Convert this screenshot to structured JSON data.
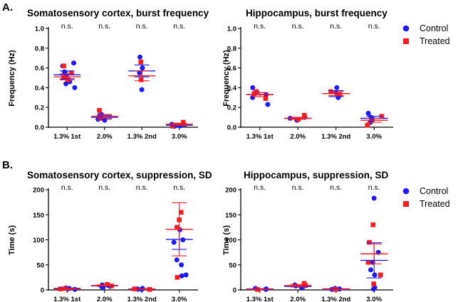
{
  "panels": {
    "a": "A.",
    "b": "B."
  },
  "legend": [
    {
      "label": "Control",
      "color": "#1a1aff",
      "marker": "circle"
    },
    {
      "label": "Treated",
      "color": "#ff1a1a",
      "marker": "square"
    }
  ],
  "chart_data": [
    {
      "type": "scatter",
      "title": "Somatosensory cortex, burst frequency",
      "ylabel": "Frequency (Hz)",
      "xlabel": "",
      "categories": [
        "1.3% 1st",
        "2.0%",
        "1.3% 2nd",
        "3.0%"
      ],
      "ylim": [
        0,
        1.0
      ],
      "yticks": [
        "0.0",
        "0.2",
        "0.4",
        "0.6",
        "0.8",
        "1.0"
      ],
      "annotations": [
        "n.s.",
        "n.s.",
        "n.s.",
        "n.s."
      ],
      "series": [
        {
          "name": "Control",
          "points": [
            [
              0,
              0.65
            ],
            [
              0,
              0.56
            ],
            [
              0,
              0.52
            ],
            [
              0,
              0.46
            ],
            [
              0,
              0.44
            ],
            [
              0,
              0.4
            ],
            [
              0,
              0.62
            ],
            [
              1,
              0.13
            ],
            [
              1,
              0.1
            ],
            [
              1,
              0.08
            ],
            [
              1,
              0.07
            ],
            [
              1,
              0.12
            ],
            [
              2,
              0.71
            ],
            [
              2,
              0.6
            ],
            [
              2,
              0.38
            ],
            [
              2,
              0.55
            ],
            [
              3,
              0.03
            ],
            [
              3,
              0.02
            ],
            [
              3,
              0.01
            ],
            [
              3,
              0.015
            ]
          ],
          "mean": [
            0.53,
            0.1,
            0.57,
            0.02
          ],
          "error": [
            0.04,
            0.02,
            0.06,
            0.01
          ]
        },
        {
          "name": "Treated",
          "points": [
            [
              0,
              0.62
            ],
            [
              0,
              0.55
            ],
            [
              0,
              0.5
            ],
            [
              0,
              0.48
            ],
            [
              1,
              0.17
            ],
            [
              1,
              0.09
            ],
            [
              1,
              0.1
            ],
            [
              2,
              0.66
            ],
            [
              2,
              0.48
            ],
            [
              3,
              0.05
            ],
            [
              3,
              0.01
            ]
          ],
          "mean": [
            0.51,
            0.11,
            0.52,
            0.03
          ],
          "error": [
            0.03,
            0.02,
            0.05,
            0.01
          ]
        }
      ]
    },
    {
      "type": "scatter",
      "title": "Hippocampus, burst frequency",
      "ylabel": "Frequency (Hz)",
      "xlabel": "",
      "categories": [
        "1.3% 1st",
        "2.0%",
        "1.3% 2nd",
        "3.0%"
      ],
      "ylim": [
        0,
        1.0
      ],
      "yticks": [
        "0.0",
        "0.2",
        "0.4",
        "0.6",
        "0.8",
        "1.0"
      ],
      "annotations": [
        "n.s.",
        "n.s.",
        "n.s.",
        "n.s."
      ],
      "series": [
        {
          "name": "Control",
          "points": [
            [
              0,
              0.4
            ],
            [
              0,
              0.33
            ],
            [
              0,
              0.3
            ],
            [
              0,
              0.23
            ],
            [
              0,
              0.36
            ],
            [
              1,
              0.09
            ],
            [
              1,
              0.07
            ],
            [
              1,
              0.1
            ],
            [
              1,
              0.08
            ],
            [
              2,
              0.4
            ],
            [
              2,
              0.35
            ],
            [
              2,
              0.3
            ],
            [
              2,
              0.32
            ],
            [
              3,
              0.14
            ],
            [
              3,
              0.1
            ],
            [
              3,
              0.07
            ],
            [
              3,
              0.05
            ]
          ],
          "mean": [
            0.33,
            0.09,
            0.34,
            0.09
          ],
          "error": [
            0.02,
            0.01,
            0.03,
            0.02
          ]
        },
        {
          "name": "Treated",
          "points": [
            [
              0,
              0.36
            ],
            [
              0,
              0.34
            ],
            [
              0,
              0.29
            ],
            [
              1,
              0.12
            ],
            [
              1,
              0.08
            ],
            [
              2,
              0.36
            ],
            [
              2,
              0.33
            ],
            [
              3,
              0.11
            ],
            [
              3,
              0.02
            ]
          ],
          "mean": [
            0.33,
            0.09,
            0.34,
            0.07
          ],
          "error": [
            0.02,
            0.01,
            0.02,
            0.02
          ]
        }
      ]
    },
    {
      "type": "scatter",
      "title": "Somatosensory cortex, suppression, SD",
      "ylabel": "Time (s)",
      "xlabel": "",
      "categories": [
        "1.3% 1st",
        "2.0%",
        "1.3% 2nd",
        "3.0%"
      ],
      "ylim": [
        0,
        200
      ],
      "yticks": [
        "0",
        "50",
        "100",
        "150",
        "200"
      ],
      "annotations": [
        "n.s.",
        "n.s.",
        "n.s.",
        "n.s."
      ],
      "series": [
        {
          "name": "Control",
          "points": [
            [
              0,
              3
            ],
            [
              0,
              2
            ],
            [
              0,
              4
            ],
            [
              0,
              1
            ],
            [
              1,
              9
            ],
            [
              1,
              7
            ],
            [
              1,
              5
            ],
            [
              1,
              10
            ],
            [
              1,
              6
            ],
            [
              2,
              2
            ],
            [
              2,
              1
            ],
            [
              2,
              3
            ],
            [
              2,
              1.5
            ],
            [
              3,
              120
            ],
            [
              3,
              100
            ],
            [
              3,
              95
            ],
            [
              3,
              60
            ],
            [
              3,
              50
            ],
            [
              3,
              30
            ],
            [
              3,
              28
            ]
          ],
          "mean": [
            3,
            8,
            2,
            101
          ],
          "error": [
            1,
            1,
            0.5,
            20
          ]
        },
        {
          "name": "Treated",
          "points": [
            [
              0,
              2
            ],
            [
              0,
              3
            ],
            [
              1,
              11
            ],
            [
              1,
              8
            ],
            [
              2,
              1
            ],
            [
              2,
              2
            ],
            [
              3,
              155
            ],
            [
              3,
              140
            ],
            [
              3,
              125
            ],
            [
              3,
              25
            ]
          ],
          "mean": [
            2,
            9,
            1.5,
            121
          ],
          "error": [
            1,
            1,
            0.5,
            53
          ]
        }
      ]
    },
    {
      "type": "scatter",
      "title": "Hippocampus, suppression, SD",
      "ylabel": "Time (s)",
      "xlabel": "",
      "categories": [
        "1.3% 1st",
        "2.0%",
        "1.3% 2nd",
        "3.0%"
      ],
      "ylim": [
        0,
        200
      ],
      "yticks": [
        "0",
        "50",
        "100",
        "150",
        "200"
      ],
      "annotations": [
        "n.s.",
        "n.s.",
        "n.s.",
        "n.s."
      ],
      "series": [
        {
          "name": "Control",
          "points": [
            [
              0,
              2
            ],
            [
              0,
              1
            ],
            [
              0,
              3
            ],
            [
              1,
              8
            ],
            [
              1,
              6
            ],
            [
              1,
              5
            ],
            [
              1,
              10
            ],
            [
              2,
              2
            ],
            [
              2,
              1
            ],
            [
              2,
              3
            ],
            [
              3,
              183
            ],
            [
              3,
              75
            ],
            [
              3,
              55
            ],
            [
              3,
              40
            ],
            [
              3,
              30
            ],
            [
              3,
              5
            ],
            [
              3,
              2
            ]
          ],
          "mean": [
            2,
            7,
            2,
            59
          ],
          "error": [
            0.5,
            1,
            0.5,
            35
          ]
        },
        {
          "name": "Treated",
          "points": [
            [
              0,
              1
            ],
            [
              1,
              13
            ],
            [
              1,
              9
            ],
            [
              2,
              1
            ],
            [
              3,
              130
            ],
            [
              3,
              95
            ],
            [
              3,
              55
            ],
            [
              3,
              30
            ],
            [
              3,
              12
            ]
          ],
          "mean": [
            1,
            9,
            1,
            72
          ],
          "error": [
            0.5,
            2,
            0.5,
            20
          ]
        }
      ]
    }
  ]
}
